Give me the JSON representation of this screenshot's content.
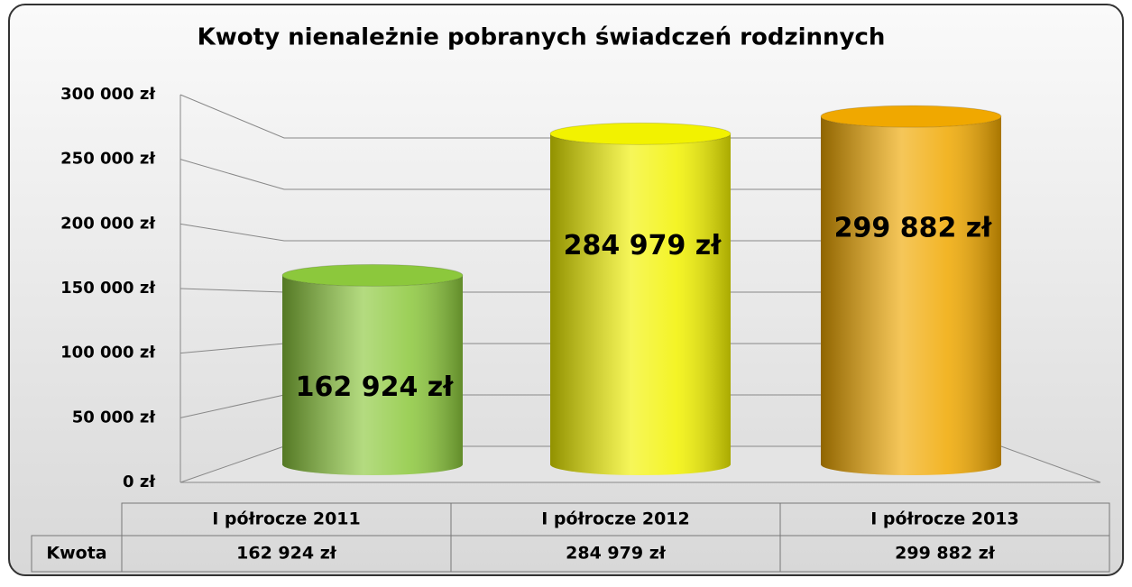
{
  "chart_data": {
    "type": "bar3d",
    "title": "Kwoty nienależnie pobranych świadczeń rodzinnych",
    "categories": [
      "I półrocze 2011",
      "I półrocze 2012",
      "I półrocze 2013"
    ],
    "series": [
      {
        "name": "Kwota",
        "values": [
          162924,
          284979,
          299882
        ],
        "value_labels": [
          "162 924 zł",
          "284 979 zł",
          "299 882 zł"
        ],
        "colors": [
          "#8cc83c",
          "#f2f200",
          "#f0a800"
        ]
      }
    ],
    "ylim": [
      0,
      300000
    ],
    "yticks": [
      {
        "value": 0,
        "label": "0 zł"
      },
      {
        "value": 50000,
        "label": "50 000 zł"
      },
      {
        "value": 100000,
        "label": "100 000 zł"
      },
      {
        "value": 150000,
        "label": "150 000 zł"
      },
      {
        "value": 200000,
        "label": "200 000 zł"
      },
      {
        "value": 250000,
        "label": "250 000 zł"
      },
      {
        "value": 300000,
        "label": "300 000 zł"
      }
    ],
    "grid": true
  }
}
